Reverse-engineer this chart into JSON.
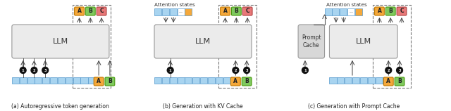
{
  "fig_width": 6.4,
  "fig_height": 1.58,
  "dpi": 100,
  "background": "#ffffff",
  "caption_a": "(a) Autoregressive token generation",
  "caption_b": "(b) Generation with KV Cache",
  "caption_c": "(c) Generation with Prompt Cache",
  "attention_label": "Attention states",
  "llm_label": "LLM",
  "prompt_cache_label": "Prompt\nCache",
  "token_A_color": "#f5a83a",
  "token_B_color": "#7fc95e",
  "token_C_color": "#e87878",
  "token_A_edge": "#c07800",
  "token_B_edge": "#4a9a10",
  "token_C_edge": "#b04040",
  "kv_blue": "#a8d4f0",
  "kv_orange": "#f5a83a",
  "input_row_color": "#a8d4f0",
  "input_row_edge": "#5599cc",
  "llm_box_color": "#ebebeb",
  "llm_box_edge": "#999999",
  "pc_box_color": "#d8d8d8",
  "pc_box_edge": "#999999",
  "dashed_color": "#777777",
  "arrow_color": "#444444",
  "circle_color": "#111111",
  "circle_text_color": "#ffffff",
  "attn_box_edge": "#777777",
  "attn_box_color": "#f5f5f5"
}
